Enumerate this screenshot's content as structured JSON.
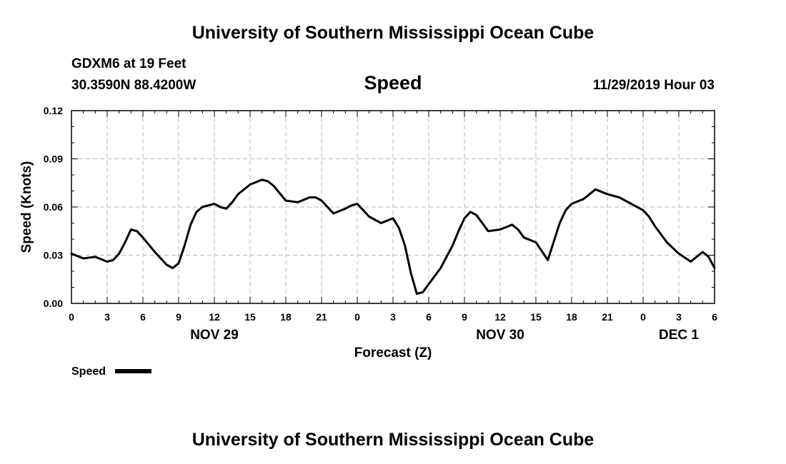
{
  "chart_data": {
    "type": "line",
    "title": "University of Southern Mississippi Ocean Cube",
    "footer_title": "University of Southern Mississippi Ocean Cube",
    "station": "GDXM6 at 19 Feet",
    "location": "30.3590N 88.4200W",
    "subtitle": "Speed",
    "run_time": "11/29/2019 Hour 03",
    "xlabel": "Forecast (Z)",
    "ylabel": "Speed (Knots)",
    "xlim": [
      0,
      54
    ],
    "ylim": [
      0,
      0.12
    ],
    "grid": true,
    "x_ticks": [
      0,
      3,
      6,
      9,
      12,
      15,
      18,
      21,
      24,
      27,
      30,
      33,
      36,
      39,
      42,
      45,
      48,
      51,
      54
    ],
    "x_tick_labels": [
      "0",
      "3",
      "6",
      "9",
      "12",
      "15",
      "18",
      "21",
      "0",
      "3",
      "6",
      "9",
      "12",
      "15",
      "18",
      "21",
      "0",
      "3",
      "6"
    ],
    "y_ticks": [
      0,
      0.03,
      0.06,
      0.09,
      0.12
    ],
    "y_tick_labels": [
      "0.00",
      "0.03",
      "0.06",
      "0.09",
      "0.12"
    ],
    "date_labels": [
      {
        "x": 12,
        "label": "NOV 29"
      },
      {
        "x": 36,
        "label": "NOV 30"
      },
      {
        "x": 51,
        "label": "DEC 1"
      }
    ],
    "legend": {
      "position": "bottom-left",
      "label": "Speed"
    },
    "series": [
      {
        "name": "Speed",
        "color": "#000000",
        "x": [
          0,
          1,
          2,
          3,
          3.5,
          4,
          4.5,
          5,
          5.5,
          6,
          7,
          8,
          8.5,
          9,
          9.5,
          10,
          10.5,
          11,
          12,
          12.5,
          13,
          13.5,
          14,
          15,
          16,
          16.5,
          17,
          18,
          19,
          20,
          20.5,
          21,
          21.5,
          22,
          23,
          23.5,
          24,
          25,
          26,
          27,
          27.5,
          28,
          28.5,
          29,
          29.5,
          30,
          31,
          32,
          32.5,
          33,
          33.5,
          34,
          35,
          36,
          37,
          37.5,
          38,
          39,
          40,
          41,
          41.5,
          42,
          43,
          44,
          45,
          46,
          47,
          48,
          48.5,
          49,
          50,
          51,
          52,
          53,
          53.5,
          54
        ],
        "values": [
          0.031,
          0.028,
          0.029,
          0.026,
          0.027,
          0.031,
          0.038,
          0.046,
          0.045,
          0.041,
          0.032,
          0.024,
          0.022,
          0.025,
          0.036,
          0.049,
          0.057,
          0.06,
          0.062,
          0.06,
          0.059,
          0.063,
          0.068,
          0.074,
          0.077,
          0.076,
          0.073,
          0.064,
          0.063,
          0.066,
          0.066,
          0.064,
          0.06,
          0.056,
          0.059,
          0.061,
          0.062,
          0.054,
          0.05,
          0.053,
          0.047,
          0.036,
          0.019,
          0.006,
          0.007,
          0.012,
          0.022,
          0.036,
          0.045,
          0.053,
          0.057,
          0.055,
          0.045,
          0.046,
          0.049,
          0.046,
          0.041,
          0.038,
          0.027,
          0.05,
          0.058,
          0.062,
          0.065,
          0.071,
          0.068,
          0.066,
          0.062,
          0.058,
          0.054,
          0.048,
          0.038,
          0.031,
          0.026,
          0.032,
          0.029,
          0.022
        ]
      }
    ]
  }
}
